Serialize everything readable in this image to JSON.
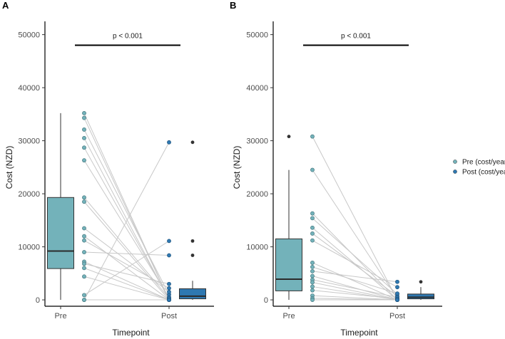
{
  "chart_data": [
    {
      "type": "box-and-paired-points",
      "panel_label": "A",
      "xlabel": "Timepoint",
      "ylabel": "Cost (NZD)",
      "categories": [
        "Pre",
        "Post"
      ],
      "yticks": [
        0,
        10000,
        20000,
        30000,
        40000,
        50000
      ],
      "ylim": [
        -1200,
        52500
      ],
      "annotation": "p < 0.001",
      "box": {
        "Pre": {
          "min": 0,
          "q1": 5900,
          "median": 9200,
          "q3": 19300,
          "max": 35200,
          "outliers": []
        },
        "Post": {
          "min": 0,
          "q1": 200,
          "median": 700,
          "q3": 2100,
          "max": 3600,
          "outliers": [
            8400,
            11100,
            29700
          ]
        }
      },
      "pairs": [
        [
          35200,
          0
        ],
        [
          34300,
          0
        ],
        [
          32100,
          1000
        ],
        [
          30500,
          0
        ],
        [
          28700,
          200
        ],
        [
          26300,
          500
        ],
        [
          19300,
          300
        ],
        [
          18500,
          0
        ],
        [
          13500,
          1500
        ],
        [
          12000,
          0
        ],
        [
          11200,
          2200
        ],
        [
          9000,
          8400
        ],
        [
          7200,
          0
        ],
        [
          6800,
          3000
        ],
        [
          6000,
          0
        ],
        [
          4400,
          0
        ],
        [
          900,
          11100
        ],
        [
          0,
          29700
        ],
        [
          0,
          0
        ]
      ]
    },
    {
      "type": "box-and-paired-points",
      "panel_label": "B",
      "xlabel": "Timepoint",
      "ylabel": "Cost (NZD)",
      "categories": [
        "Pre",
        "Post"
      ],
      "yticks": [
        0,
        10000,
        20000,
        30000,
        40000,
        50000
      ],
      "ylim": [
        -1200,
        52500
      ],
      "annotation": "p < 0.001",
      "box": {
        "Pre": {
          "min": 0,
          "q1": 1700,
          "median": 3900,
          "q3": 11500,
          "max": 24500,
          "outliers": [
            30800
          ]
        },
        "Post": {
          "min": 0,
          "q1": 200,
          "median": 500,
          "q3": 1100,
          "max": 2400,
          "outliers": [
            3400
          ]
        }
      },
      "pairs": [
        [
          30800,
          0
        ],
        [
          24500,
          300
        ],
        [
          16300,
          0
        ],
        [
          15400,
          1100
        ],
        [
          13600,
          0
        ],
        [
          12500,
          700
        ],
        [
          11200,
          2400
        ],
        [
          7000,
          0
        ],
        [
          6200,
          1200
        ],
        [
          5400,
          3400
        ],
        [
          4500,
          0
        ],
        [
          3800,
          500
        ],
        [
          3300,
          0
        ],
        [
          2500,
          0
        ],
        [
          1800,
          200
        ],
        [
          800,
          0
        ],
        [
          300,
          0
        ],
        [
          0,
          0
        ]
      ]
    }
  ],
  "legend": {
    "entries": [
      {
        "label": "Pre (cost/year)",
        "color": "#73b2ba"
      },
      {
        "label": "Post (cost/year)",
        "color": "#2e78b1"
      }
    ]
  },
  "colors": {
    "pre": "#73b2ba",
    "post": "#2e78b1",
    "line": "#c8c8c8",
    "median": "#2b2b2b",
    "outlier": "#333333"
  }
}
